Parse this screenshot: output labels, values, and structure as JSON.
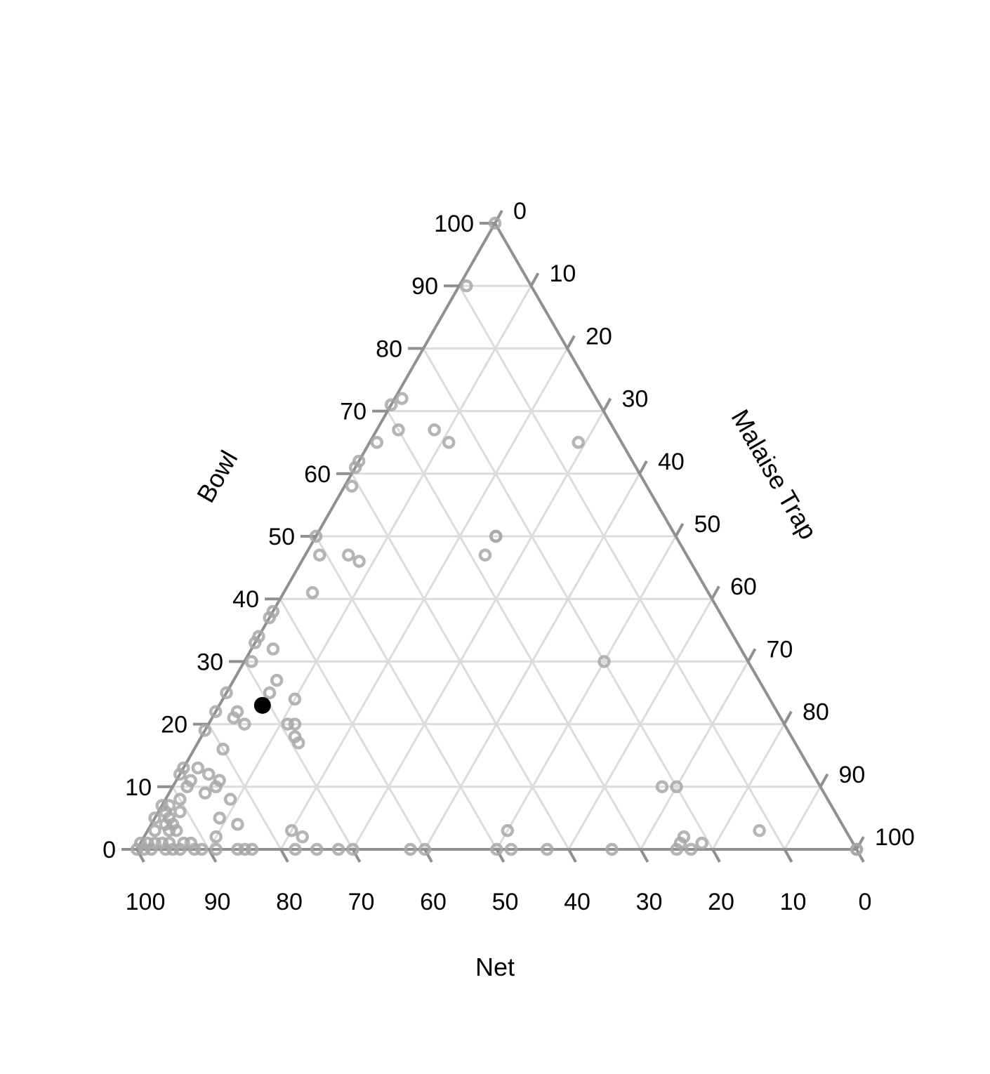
{
  "chart_data": {
    "type": "scatter",
    "subtype": "ternary",
    "axes": {
      "bottom": {
        "title": "Net",
        "ticks": [
          "100",
          "90",
          "80",
          "70",
          "60",
          "50",
          "40",
          "30",
          "20",
          "10",
          "0"
        ]
      },
      "left": {
        "title": "Bowl",
        "ticks": [
          "0",
          "10",
          "20",
          "30",
          "40",
          "50",
          "60",
          "70",
          "80",
          "90",
          "100"
        ]
      },
      "right": {
        "title": "Malaise Trap",
        "ticks": [
          "0",
          "10",
          "20",
          "30",
          "40",
          "50",
          "60",
          "70",
          "80",
          "90",
          "100"
        ]
      }
    },
    "grid": true,
    "grid_step": 10,
    "colors": {
      "axis": "#909090",
      "grid": "#dcdcdc",
      "points": "#a8a8a8",
      "highlight": "#000000"
    },
    "highlight_point": {
      "bowl": 23,
      "malaise": 6,
      "net": 71
    },
    "points": [
      {
        "bowl": 100,
        "malaise": 0
      },
      {
        "bowl": 90,
        "malaise": 1
      },
      {
        "bowl": 72,
        "malaise": 1
      },
      {
        "bowl": 71,
        "malaise": 0
      },
      {
        "bowl": 67,
        "malaise": 3
      },
      {
        "bowl": 67,
        "malaise": 8
      },
      {
        "bowl": 65,
        "malaise": 11
      },
      {
        "bowl": 65,
        "malaise": 1
      },
      {
        "bowl": 62,
        "malaise": 0
      },
      {
        "bowl": 61,
        "malaise": 0
      },
      {
        "bowl": 65,
        "malaise": 29
      },
      {
        "bowl": 58,
        "malaise": 1
      },
      {
        "bowl": 50,
        "malaise": 0
      },
      {
        "bowl": 50,
        "malaise": 25
      },
      {
        "bowl": 50,
        "malaise": 25
      },
      {
        "bowl": 47,
        "malaise": 25
      },
      {
        "bowl": 47,
        "malaise": 2
      },
      {
        "bowl": 47,
        "malaise": 6
      },
      {
        "bowl": 46,
        "malaise": 8
      },
      {
        "bowl": 41,
        "malaise": 4
      },
      {
        "bowl": 38,
        "malaise": 0
      },
      {
        "bowl": 37,
        "malaise": 0
      },
      {
        "bowl": 34,
        "malaise": 0
      },
      {
        "bowl": 33,
        "malaise": 0
      },
      {
        "bowl": 32,
        "malaise": 3
      },
      {
        "bowl": 30,
        "malaise": 1
      },
      {
        "bowl": 30,
        "malaise": 50
      },
      {
        "bowl": 27,
        "malaise": 6
      },
      {
        "bowl": 25,
        "malaise": 6
      },
      {
        "bowl": 25,
        "malaise": 0
      },
      {
        "bowl": 24,
        "malaise": 10
      },
      {
        "bowl": 22,
        "malaise": 0
      },
      {
        "bowl": 22,
        "malaise": 3
      },
      {
        "bowl": 21,
        "malaise": 3
      },
      {
        "bowl": 20,
        "malaise": 11
      },
      {
        "bowl": 20,
        "malaise": 12
      },
      {
        "bowl": 20,
        "malaise": 5
      },
      {
        "bowl": 19,
        "malaise": 0
      },
      {
        "bowl": 18,
        "malaise": 13
      },
      {
        "bowl": 17,
        "malaise": 14
      },
      {
        "bowl": 16,
        "malaise": 4
      },
      {
        "bowl": 13,
        "malaise": 0
      },
      {
        "bowl": 13,
        "malaise": 2
      },
      {
        "bowl": 12,
        "malaise": 0
      },
      {
        "bowl": 12,
        "malaise": 4
      },
      {
        "bowl": 11,
        "malaise": 2
      },
      {
        "bowl": 11,
        "malaise": 6
      },
      {
        "bowl": 10,
        "malaise": 6
      },
      {
        "bowl": 10,
        "malaise": 2
      },
      {
        "bowl": 10,
        "malaise": 68
      },
      {
        "bowl": 10,
        "malaise": 70
      },
      {
        "bowl": 9,
        "malaise": 5
      },
      {
        "bowl": 8,
        "malaise": 2
      },
      {
        "bowl": 8,
        "malaise": 9
      },
      {
        "bowl": 7,
        "malaise": 0
      },
      {
        "bowl": 7,
        "malaise": 1
      },
      {
        "bowl": 6,
        "malaise": 1
      },
      {
        "bowl": 6,
        "malaise": 3
      },
      {
        "bowl": 5,
        "malaise": 0
      },
      {
        "bowl": 5,
        "malaise": 2
      },
      {
        "bowl": 5,
        "malaise": 9
      },
      {
        "bowl": 4,
        "malaise": 2
      },
      {
        "bowl": 4,
        "malaise": 3
      },
      {
        "bowl": 4,
        "malaise": 12
      },
      {
        "bowl": 3,
        "malaise": 1
      },
      {
        "bowl": 3,
        "malaise": 3
      },
      {
        "bowl": 3,
        "malaise": 4
      },
      {
        "bowl": 3,
        "malaise": 20
      },
      {
        "bowl": 3,
        "malaise": 50
      },
      {
        "bowl": 3,
        "malaise": 85
      },
      {
        "bowl": 2,
        "malaise": 10
      },
      {
        "bowl": 2,
        "malaise": 22
      },
      {
        "bowl": 2,
        "malaise": 75
      },
      {
        "bowl": 1,
        "malaise": 0
      },
      {
        "bowl": 1,
        "malaise": 1
      },
      {
        "bowl": 1,
        "malaise": 2
      },
      {
        "bowl": 1,
        "malaise": 3
      },
      {
        "bowl": 1,
        "malaise": 4
      },
      {
        "bowl": 1,
        "malaise": 6
      },
      {
        "bowl": 1,
        "malaise": 7
      },
      {
        "bowl": 1,
        "malaise": 75
      },
      {
        "bowl": 1,
        "malaise": 78
      },
      {
        "bowl": 0,
        "malaise": 0
      },
      {
        "bowl": 0,
        "malaise": 1
      },
      {
        "bowl": 0,
        "malaise": 2
      },
      {
        "bowl": 0,
        "malaise": 4
      },
      {
        "bowl": 0,
        "malaise": 5
      },
      {
        "bowl": 0,
        "malaise": 6
      },
      {
        "bowl": 0,
        "malaise": 8
      },
      {
        "bowl": 0,
        "malaise": 9
      },
      {
        "bowl": 0,
        "malaise": 11
      },
      {
        "bowl": 0,
        "malaise": 14
      },
      {
        "bowl": 0,
        "malaise": 15
      },
      {
        "bowl": 0,
        "malaise": 16
      },
      {
        "bowl": 0,
        "malaise": 22
      },
      {
        "bowl": 0,
        "malaise": 25
      },
      {
        "bowl": 0,
        "malaise": 28
      },
      {
        "bowl": 0,
        "malaise": 30
      },
      {
        "bowl": 0,
        "malaise": 38
      },
      {
        "bowl": 0,
        "malaise": 40
      },
      {
        "bowl": 0,
        "malaise": 50
      },
      {
        "bowl": 0,
        "malaise": 52
      },
      {
        "bowl": 0,
        "malaise": 57
      },
      {
        "bowl": 0,
        "malaise": 66
      },
      {
        "bowl": 0,
        "malaise": 75
      },
      {
        "bowl": 0,
        "malaise": 77
      },
      {
        "bowl": 0,
        "malaise": 100
      },
      {
        "bowl": 0,
        "malaise": 100
      }
    ]
  }
}
